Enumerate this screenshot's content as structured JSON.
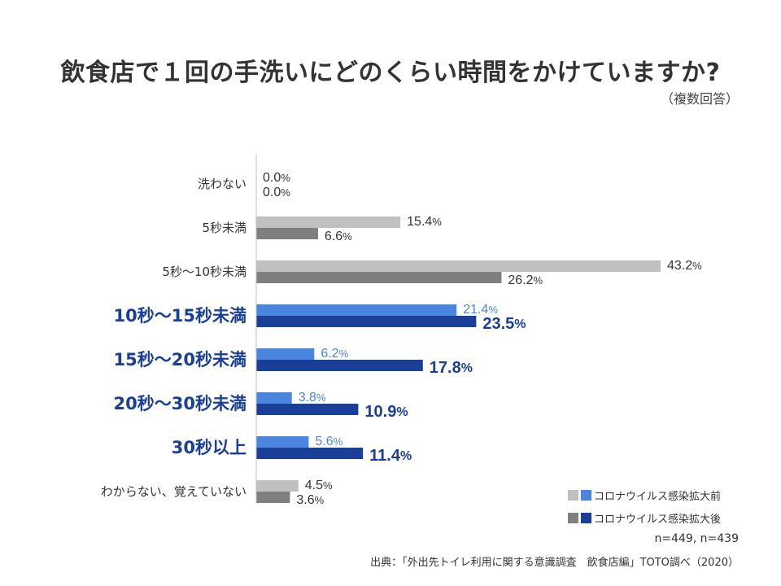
{
  "title": "飲食店で１回の手洗いにどのくらい時間をかけていますか?",
  "note": "（複数回答）",
  "legend": {
    "before": "コロナウイルス感染拡大前",
    "after": "コロナウイルス感染拡大後"
  },
  "sample_size": "n=449, n=439",
  "source": "出典：「外出先トイレ利用に関する意識調査　飲食店編」TOTO調べ（2020）",
  "colors": {
    "gray_light": "#c0c0c0",
    "gray_dark": "#7f7f7f",
    "blue_light": "#4a86e0",
    "blue_dark": "#1a3f98",
    "highlight_label": "#1a3f98",
    "normal_label": "#333333"
  },
  "chart_data": {
    "type": "bar",
    "orientation": "horizontal",
    "unit": "%",
    "categories": [
      "洗わない",
      "5秒未満",
      "5秒～10秒未満",
      "10秒～15秒未満",
      "15秒～20秒未満",
      "20秒～30秒未満",
      "30秒以上",
      "わからない、覚えていない"
    ],
    "highlighted": [
      false,
      false,
      false,
      true,
      true,
      true,
      true,
      false
    ],
    "series": [
      {
        "name": "コロナウイルス感染拡大前",
        "values": [
          0.0,
          15.4,
          43.2,
          21.4,
          6.2,
          3.8,
          5.6,
          4.5
        ]
      },
      {
        "name": "コロナウイルス感染拡大後",
        "values": [
          0.0,
          6.6,
          26.2,
          23.5,
          17.8,
          10.9,
          11.4,
          3.6
        ]
      }
    ],
    "value_labels": {
      "before": [
        "0.0",
        "15.4",
        "43.2",
        "21.4",
        "6.2",
        "3.8",
        "5.6",
        "4.5"
      ],
      "after": [
        "0.0",
        "6.6",
        "26.2",
        "23.5",
        "17.8",
        "10.9",
        "11.4",
        "3.6"
      ]
    },
    "xlim": [
      0,
      43.2
    ],
    "grid": false,
    "legend_position": "bottom-right"
  }
}
